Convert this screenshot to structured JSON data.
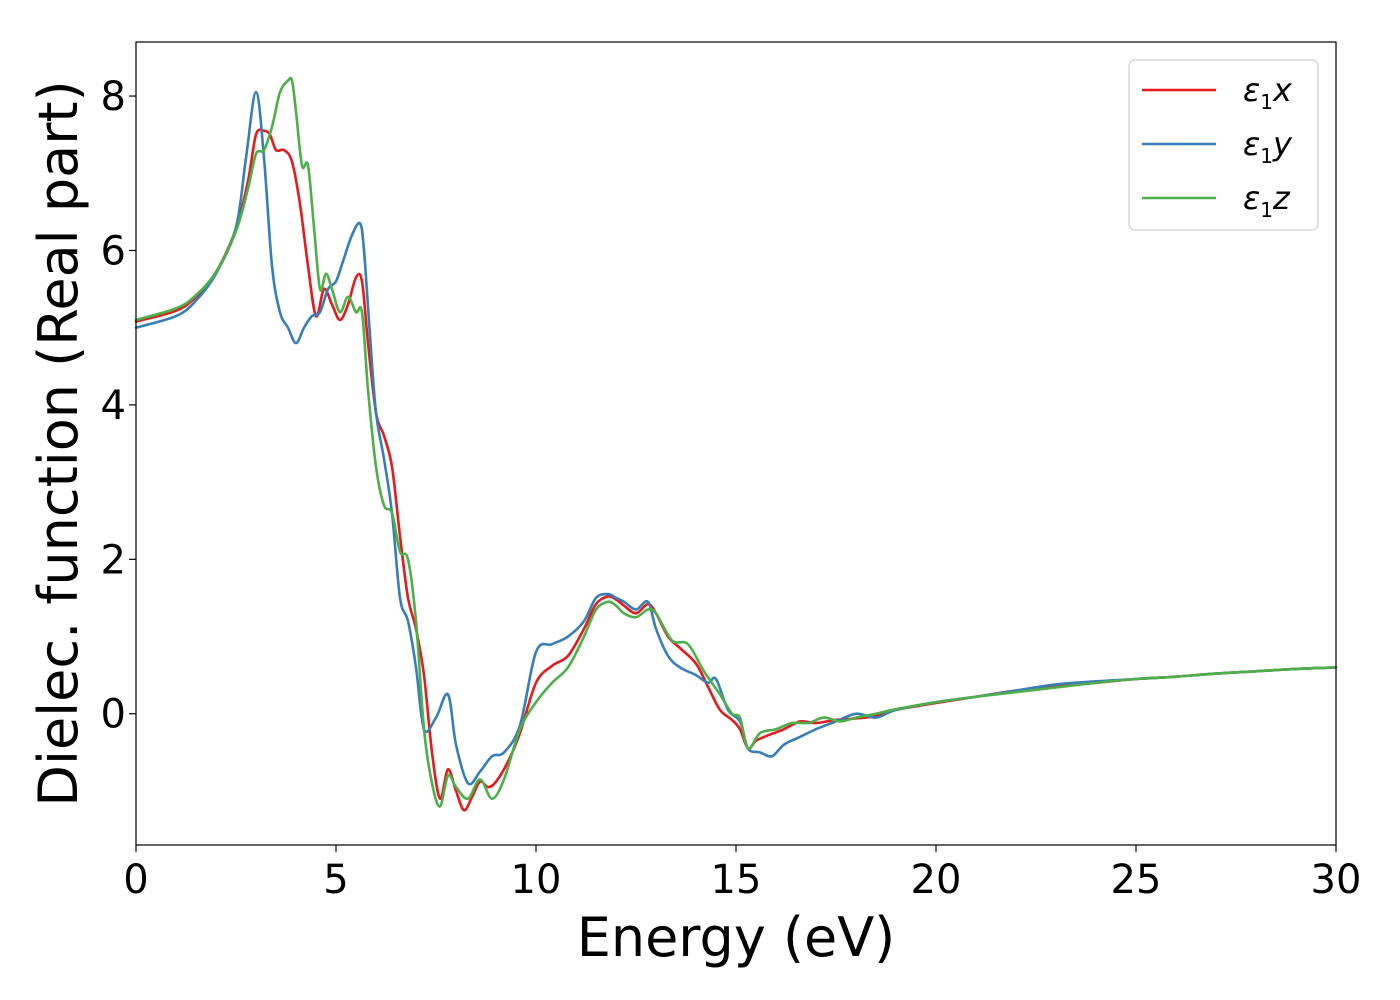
{
  "chart_data": {
    "type": "line",
    "xlabel": "Energy (eV)",
    "ylabel": "Dielec. function (Real part)",
    "xlim": [
      0,
      30
    ],
    "ylim": [
      -1.7,
      8.7
    ],
    "xticks": [
      0,
      5,
      10,
      15,
      20,
      25,
      30
    ],
    "yticks": [
      0,
      2,
      4,
      6,
      8
    ],
    "grid": false,
    "legend_position": "top-right",
    "series": [
      {
        "name": "ε₁x",
        "color": "#e41a1c",
        "x": [
          0,
          1,
          1.5,
          2,
          2.5,
          2.8,
          3.0,
          3.2,
          3.35,
          3.5,
          3.7,
          3.9,
          4.1,
          4.3,
          4.5,
          4.7,
          4.9,
          5.1,
          5.3,
          5.5,
          5.65,
          5.8,
          6.0,
          6.2,
          6.4,
          6.6,
          6.8,
          7.0,
          7.2,
          7.4,
          7.6,
          7.8,
          8.0,
          8.2,
          8.4,
          8.6,
          8.8,
          9.0,
          9.3,
          9.6,
          10.0,
          10.4,
          10.8,
          11.2,
          11.5,
          11.8,
          12.0,
          12.2,
          12.5,
          12.8,
          13.0,
          13.3,
          13.6,
          14.0,
          14.3,
          14.6,
          14.9,
          15.1,
          15.3,
          15.5,
          15.8,
          16.2,
          16.6,
          17.0,
          17.5,
          18.0,
          18.5,
          19.0,
          20.0,
          21.0,
          22.0,
          23.0,
          24.0,
          25.0,
          26.0,
          27.0,
          28.0,
          29.0,
          30.0
        ],
        "y": [
          5.08,
          5.22,
          5.4,
          5.72,
          6.28,
          6.9,
          7.5,
          7.55,
          7.5,
          7.3,
          7.3,
          7.15,
          6.6,
          5.8,
          5.15,
          5.5,
          5.3,
          5.1,
          5.3,
          5.65,
          5.6,
          4.8,
          3.9,
          3.6,
          3.2,
          2.3,
          1.5,
          1.1,
          0.5,
          -0.5,
          -1.1,
          -0.72,
          -1.0,
          -1.25,
          -1.08,
          -0.88,
          -0.95,
          -0.88,
          -0.62,
          -0.25,
          0.4,
          0.62,
          0.75,
          1.1,
          1.42,
          1.52,
          1.48,
          1.4,
          1.3,
          1.42,
          1.3,
          1.0,
          0.85,
          0.65,
          0.35,
          0.05,
          -0.08,
          -0.2,
          -0.45,
          -0.35,
          -0.28,
          -0.2,
          -0.1,
          -0.12,
          -0.08,
          -0.06,
          -0.03,
          0.05,
          0.14,
          0.22,
          0.3,
          0.36,
          0.4,
          0.45,
          0.48,
          0.52,
          0.55,
          0.58,
          0.6
        ]
      },
      {
        "name": "ε₁y",
        "color": "#377eb8",
        "x": [
          0,
          1,
          1.5,
          2,
          2.5,
          2.75,
          3.0,
          3.2,
          3.4,
          3.6,
          3.8,
          4.0,
          4.2,
          4.4,
          4.6,
          4.8,
          5.0,
          5.2,
          5.4,
          5.6,
          5.7,
          5.85,
          6.0,
          6.2,
          6.4,
          6.6,
          6.8,
          7.0,
          7.2,
          7.5,
          7.8,
          8.0,
          8.3,
          8.6,
          8.9,
          9.2,
          9.6,
          10.0,
          10.4,
          10.8,
          11.2,
          11.5,
          11.8,
          12.0,
          12.2,
          12.5,
          12.8,
          13.0,
          13.3,
          13.6,
          14.0,
          14.3,
          14.5,
          14.8,
          15.1,
          15.3,
          15.6,
          15.9,
          16.2,
          16.6,
          17.0,
          17.5,
          18.0,
          18.5,
          19.0,
          20.0,
          21.0,
          22.0,
          23.0,
          24.0,
          25.0,
          26.0,
          27.0,
          28.0,
          29.0,
          30.0
        ],
        "y": [
          5.0,
          5.15,
          5.35,
          5.7,
          6.3,
          7.2,
          8.05,
          7.2,
          5.8,
          5.2,
          5.0,
          4.8,
          5.0,
          5.15,
          5.2,
          5.5,
          5.6,
          5.9,
          6.2,
          6.35,
          6.0,
          4.9,
          3.9,
          3.3,
          2.6,
          1.5,
          1.2,
          0.6,
          -0.2,
          -0.05,
          0.25,
          -0.4,
          -0.9,
          -0.75,
          -0.55,
          -0.5,
          -0.15,
          0.8,
          0.9,
          1.0,
          1.2,
          1.5,
          1.55,
          1.5,
          1.45,
          1.35,
          1.45,
          1.1,
          0.75,
          0.6,
          0.5,
          0.4,
          0.45,
          0.05,
          -0.1,
          -0.45,
          -0.5,
          -0.55,
          -0.4,
          -0.3,
          -0.2,
          -0.1,
          0.0,
          -0.05,
          0.05,
          0.15,
          0.22,
          0.3,
          0.38,
          0.42,
          0.45,
          0.48,
          0.52,
          0.55,
          0.58,
          0.6
        ]
      },
      {
        "name": "ε₁z",
        "color": "#4daf4a",
        "x": [
          0,
          1,
          1.5,
          2,
          2.5,
          2.8,
          3.0,
          3.2,
          3.4,
          3.6,
          3.8,
          3.9,
          4.0,
          4.15,
          4.3,
          4.45,
          4.6,
          4.75,
          4.9,
          5.1,
          5.3,
          5.5,
          5.65,
          5.8,
          6.0,
          6.2,
          6.4,
          6.6,
          6.8,
          7.0,
          7.2,
          7.4,
          7.6,
          7.8,
          8.0,
          8.3,
          8.6,
          8.9,
          9.2,
          9.6,
          10.0,
          10.4,
          10.8,
          11.2,
          11.5,
          11.8,
          12.0,
          12.2,
          12.5,
          12.8,
          13.0,
          13.4,
          13.8,
          14.2,
          14.6,
          14.9,
          15.1,
          15.3,
          15.6,
          16.0,
          16.4,
          16.8,
          17.2,
          17.6,
          18.0,
          18.5,
          19.0,
          20.0,
          21.0,
          22.0,
          23.0,
          24.0,
          25.0,
          26.0,
          27.0,
          28.0,
          29.0,
          30.0
        ],
        "y": [
          5.1,
          5.25,
          5.42,
          5.72,
          6.25,
          6.8,
          7.25,
          7.3,
          7.6,
          8.05,
          8.2,
          8.2,
          7.8,
          7.1,
          7.1,
          6.3,
          5.5,
          5.7,
          5.5,
          5.2,
          5.4,
          5.2,
          5.2,
          4.2,
          3.2,
          2.7,
          2.6,
          2.1,
          2.0,
          1.2,
          -0.2,
          -0.9,
          -1.2,
          -0.8,
          -0.95,
          -1.1,
          -0.85,
          -1.1,
          -0.85,
          -0.2,
          0.15,
          0.4,
          0.6,
          1.0,
          1.35,
          1.45,
          1.4,
          1.3,
          1.25,
          1.35,
          1.3,
          0.95,
          0.9,
          0.55,
          0.25,
          0.0,
          -0.05,
          -0.45,
          -0.25,
          -0.2,
          -0.12,
          -0.12,
          -0.05,
          -0.1,
          -0.05,
          0.0,
          0.06,
          0.15,
          0.22,
          0.28,
          0.34,
          0.4,
          0.45,
          0.48,
          0.52,
          0.55,
          0.58,
          0.6
        ]
      }
    ]
  }
}
